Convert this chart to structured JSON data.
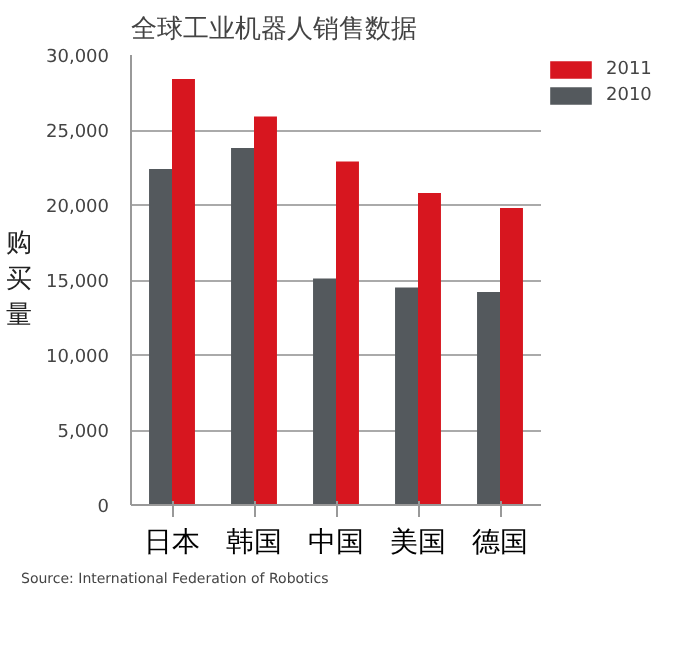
{
  "chart_data": {
    "type": "bar",
    "title": "全球工业机器人销售数据",
    "ylabel": "购买量",
    "categories": [
      "日本",
      "韩国",
      "中国",
      "美国",
      "德国"
    ],
    "series": [
      {
        "name": "2010",
        "color": "#54595d",
        "values": [
          22400,
          23800,
          15100,
          14500,
          14200
        ]
      },
      {
        "name": "2011",
        "color": "#d7161f",
        "values": [
          28400,
          25900,
          22900,
          20800,
          19800
        ]
      }
    ],
    "ylim": [
      0,
      30000
    ],
    "yticks": [
      0,
      {
        "value": 5000,
        "label": "5,000"
      },
      {
        "value": 10000,
        "label": "10,000"
      },
      {
        "value": 15000,
        "label": "15,000"
      },
      {
        "value": 20000,
        "label": "20,000"
      },
      {
        "value": 25000,
        "label": "25,000"
      },
      {
        "value": 30000,
        "label": "30,000"
      }
    ],
    "grid": "y",
    "legend": "top right",
    "annotations": [
      "Source: International Federation of Robotics"
    ]
  }
}
